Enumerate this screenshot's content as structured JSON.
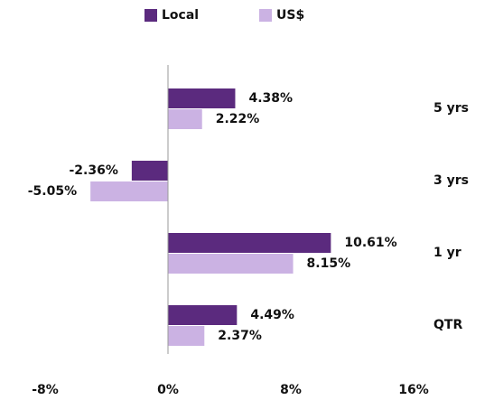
{
  "chart_data": {
    "type": "hbar",
    "categories": [
      "5 yrs",
      "3 yrs",
      "1 yr",
      "QTR"
    ],
    "series": [
      {
        "name": "Local",
        "color": "#5b2a7e",
        "values": [
          4.38,
          -2.36,
          10.61,
          4.49
        ],
        "value_labels": [
          "4.38%",
          "-2.36%",
          "10.61%",
          "4.49%"
        ]
      },
      {
        "name": "US$",
        "color": "#cbb2e3",
        "values": [
          2.22,
          -5.05,
          8.15,
          2.37
        ],
        "value_labels": [
          "2.22%",
          "-5.05%",
          "8.15%",
          "2.37%"
        ]
      }
    ],
    "xlim": [
      -8,
      16
    ],
    "xticks": [
      {
        "value": -8,
        "label": "-8%"
      },
      {
        "value": 0,
        "label": "0%"
      },
      {
        "value": 8,
        "label": "8%"
      },
      {
        "value": 16,
        "label": "16%"
      }
    ],
    "legend": "top",
    "grid": false
  }
}
